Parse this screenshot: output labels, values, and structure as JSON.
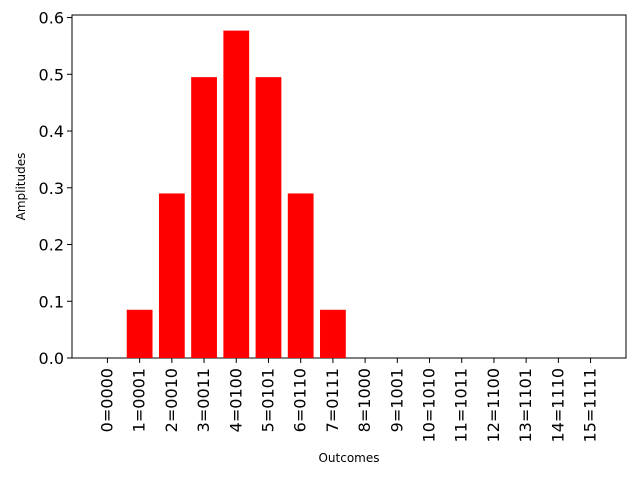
{
  "chart_data": {
    "type": "bar",
    "title": "",
    "xlabel": "Outcomes",
    "ylabel": "Amplitudes",
    "categories": [
      "0=0000",
      "1=0001",
      "2=0010",
      "3=0011",
      "4=0100",
      "5=0101",
      "6=0110",
      "7=0111",
      "8=1000",
      "9=1001",
      "10=1010",
      "11=1011",
      "12=1100",
      "13=1101",
      "14=1110",
      "15=1111"
    ],
    "values": [
      0,
      0.085,
      0.29,
      0.495,
      0.577,
      0.495,
      0.29,
      0.085,
      0,
      0,
      0,
      0,
      0,
      0,
      0,
      0
    ],
    "ylim": [
      0,
      0.6
    ],
    "yticks": [
      "0.0",
      "0.1",
      "0.2",
      "0.3",
      "0.4",
      "0.5",
      "0.6"
    ],
    "bar_color": "#ff0000",
    "grid": false
  }
}
